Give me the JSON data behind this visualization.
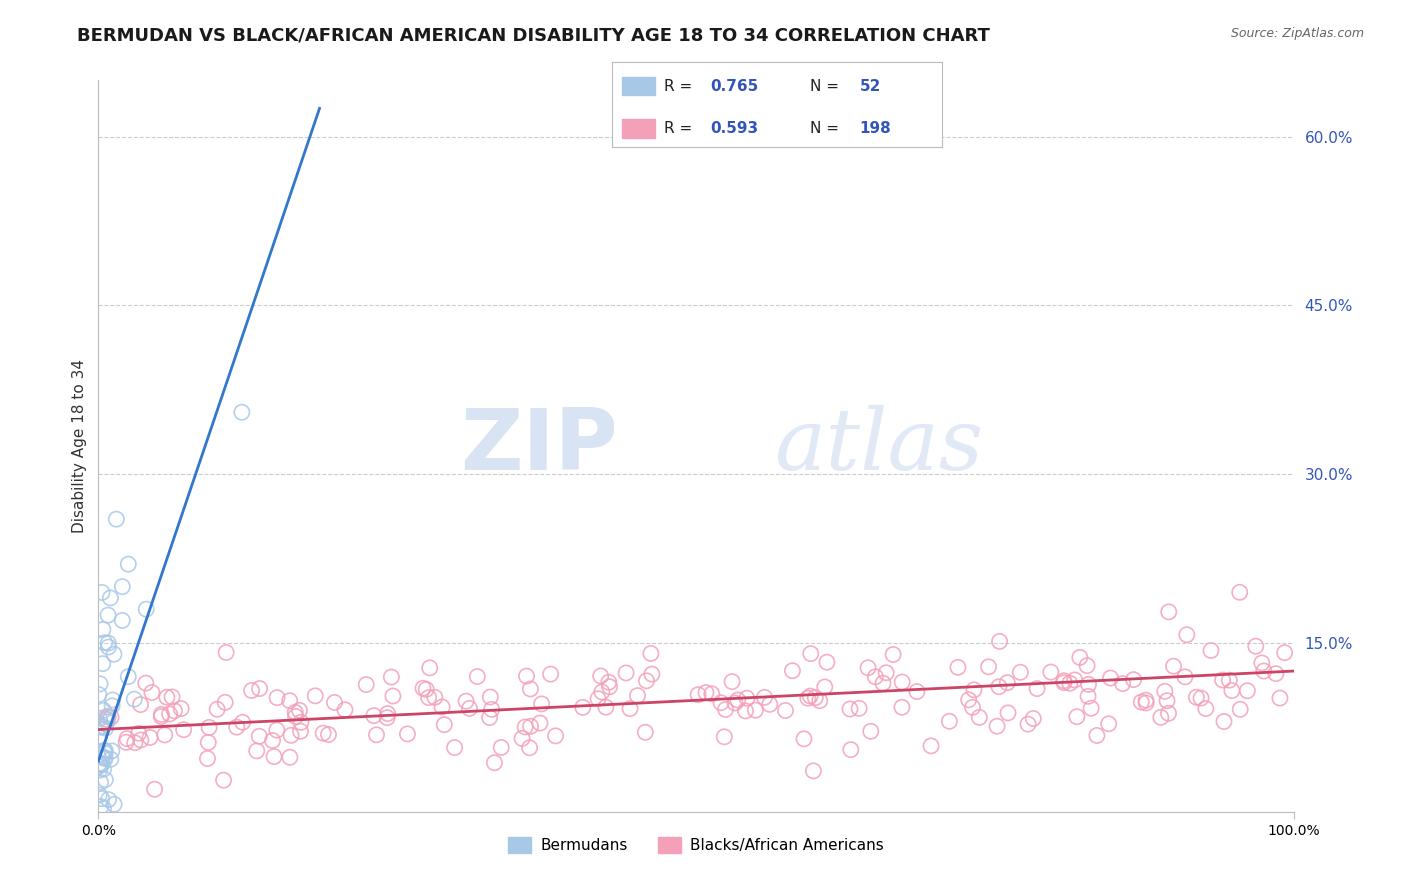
{
  "title": "BERMUDAN VS BLACK/AFRICAN AMERICAN DISABILITY AGE 18 TO 34 CORRELATION CHART",
  "source": "Source: ZipAtlas.com",
  "ylabel": "Disability Age 18 to 34",
  "legend_label_1": "Bermudans",
  "legend_label_2": "Blacks/African Americans",
  "R1": 0.765,
  "N1": 52,
  "R2": 0.593,
  "N2": 198,
  "color1": "#a8c8e8",
  "color2": "#f4a0b8",
  "line_color1": "#3377cc",
  "line_color2": "#cc4466",
  "xlim": [
    0.0,
    1.0
  ],
  "ylim": [
    0.0,
    0.65
  ],
  "yticks": [
    0.15,
    0.3,
    0.45,
    0.6
  ],
  "background_color": "#ffffff",
  "watermark_zip": "ZIP",
  "watermark_atlas": "atlas",
  "title_fontsize": 13,
  "axis_label_fontsize": 11,
  "tick_label_fontsize": 10,
  "legend_fontsize": 11,
  "blue_trend_x": [
    0.0,
    0.185
  ],
  "blue_trend_y": [
    0.045,
    0.625
  ],
  "pink_trend_x": [
    0.0,
    1.0
  ],
  "pink_trend_y": [
    0.073,
    0.125
  ]
}
